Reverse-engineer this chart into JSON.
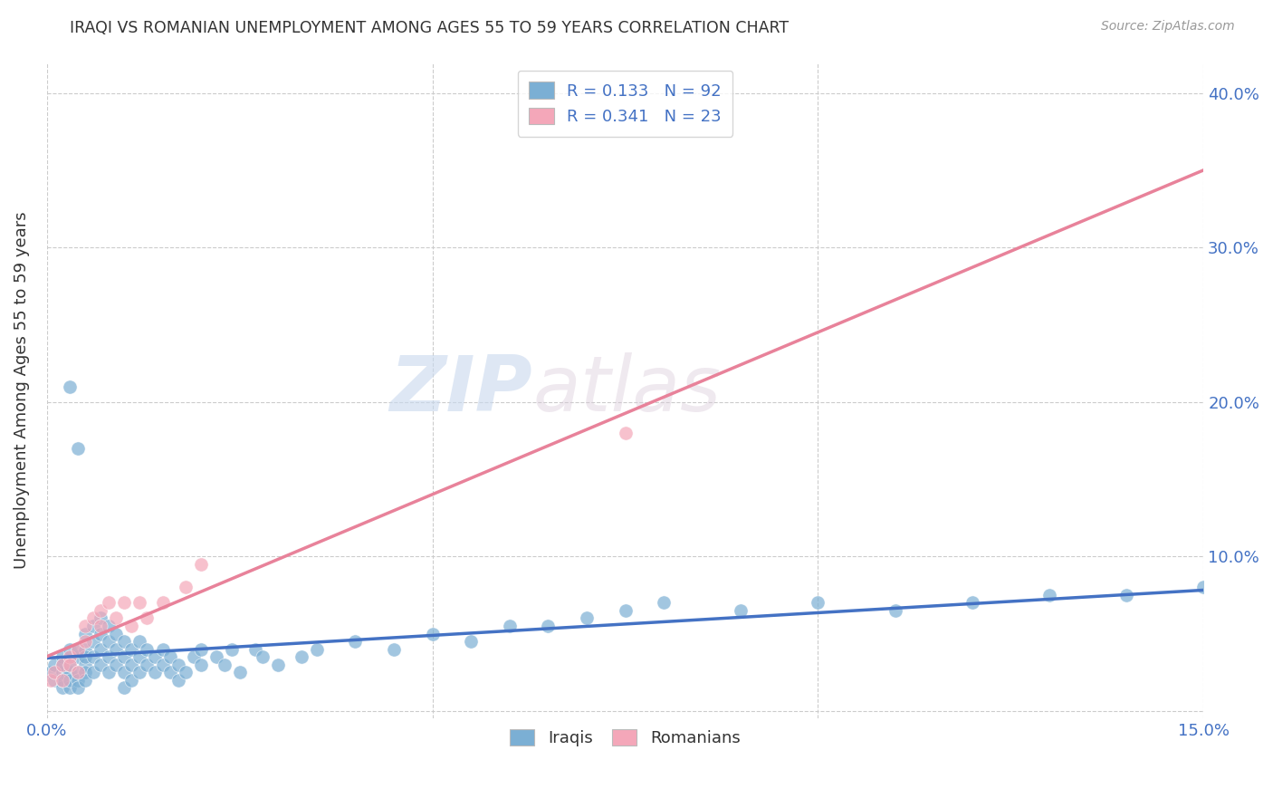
{
  "title": "IRAQI VS ROMANIAN UNEMPLOYMENT AMONG AGES 55 TO 59 YEARS CORRELATION CHART",
  "source": "Source: ZipAtlas.com",
  "ylabel": "Unemployment Among Ages 55 to 59 years",
  "xlim": [
    0.0,
    0.15
  ],
  "ylim": [
    -0.005,
    0.42
  ],
  "yticks": [
    0.0,
    0.1,
    0.2,
    0.3,
    0.4
  ],
  "ytick_labels": [
    "",
    "10.0%",
    "20.0%",
    "30.0%",
    "40.0%"
  ],
  "xticks": [
    0.0,
    0.05,
    0.1,
    0.15
  ],
  "xtick_labels": [
    "0.0%",
    "",
    "",
    "15.0%"
  ],
  "iraqi_color": "#7bafd4",
  "romanian_color": "#f4a7b9",
  "iraqi_line_color": "#4472c4",
  "romanian_line_color": "#e8829a",
  "iraqi_x": [
    0.0005,
    0.001,
    0.001,
    0.002,
    0.002,
    0.002,
    0.002,
    0.002,
    0.003,
    0.003,
    0.003,
    0.003,
    0.003,
    0.003,
    0.004,
    0.004,
    0.004,
    0.004,
    0.004,
    0.005,
    0.005,
    0.005,
    0.005,
    0.005,
    0.005,
    0.006,
    0.006,
    0.006,
    0.006,
    0.007,
    0.007,
    0.007,
    0.007,
    0.008,
    0.008,
    0.008,
    0.008,
    0.009,
    0.009,
    0.009,
    0.01,
    0.01,
    0.01,
    0.01,
    0.011,
    0.011,
    0.011,
    0.012,
    0.012,
    0.012,
    0.013,
    0.013,
    0.014,
    0.014,
    0.015,
    0.015,
    0.016,
    0.016,
    0.017,
    0.017,
    0.018,
    0.019,
    0.02,
    0.02,
    0.022,
    0.023,
    0.024,
    0.025,
    0.027,
    0.028,
    0.03,
    0.033,
    0.035,
    0.04,
    0.045,
    0.05,
    0.055,
    0.06,
    0.065,
    0.07,
    0.075,
    0.08,
    0.09,
    0.1,
    0.11,
    0.12,
    0.13,
    0.14,
    0.15,
    0.003,
    0.004
  ],
  "iraqi_y": [
    0.025,
    0.02,
    0.03,
    0.015,
    0.025,
    0.035,
    0.03,
    0.02,
    0.015,
    0.025,
    0.035,
    0.04,
    0.02,
    0.03,
    0.025,
    0.035,
    0.04,
    0.02,
    0.015,
    0.03,
    0.04,
    0.05,
    0.035,
    0.025,
    0.02,
    0.035,
    0.045,
    0.055,
    0.025,
    0.04,
    0.05,
    0.06,
    0.03,
    0.045,
    0.055,
    0.035,
    0.025,
    0.04,
    0.05,
    0.03,
    0.045,
    0.035,
    0.025,
    0.015,
    0.04,
    0.03,
    0.02,
    0.045,
    0.035,
    0.025,
    0.04,
    0.03,
    0.035,
    0.025,
    0.04,
    0.03,
    0.035,
    0.025,
    0.03,
    0.02,
    0.025,
    0.035,
    0.03,
    0.04,
    0.035,
    0.03,
    0.04,
    0.025,
    0.04,
    0.035,
    0.03,
    0.035,
    0.04,
    0.045,
    0.04,
    0.05,
    0.045,
    0.055,
    0.055,
    0.06,
    0.065,
    0.07,
    0.065,
    0.07,
    0.065,
    0.07,
    0.075,
    0.075,
    0.08,
    0.21,
    0.17
  ],
  "romanian_x": [
    0.0005,
    0.001,
    0.002,
    0.002,
    0.003,
    0.003,
    0.004,
    0.004,
    0.005,
    0.005,
    0.006,
    0.007,
    0.007,
    0.008,
    0.009,
    0.01,
    0.011,
    0.012,
    0.013,
    0.015,
    0.018,
    0.02,
    0.075
  ],
  "romanian_y": [
    0.02,
    0.025,
    0.03,
    0.02,
    0.035,
    0.03,
    0.04,
    0.025,
    0.055,
    0.045,
    0.06,
    0.065,
    0.055,
    0.07,
    0.06,
    0.07,
    0.055,
    0.07,
    0.06,
    0.07,
    0.08,
    0.095,
    0.18
  ],
  "watermark_zip": "ZIP",
  "watermark_atlas": "atlas",
  "background_color": "#ffffff",
  "grid_color": "#cccccc"
}
